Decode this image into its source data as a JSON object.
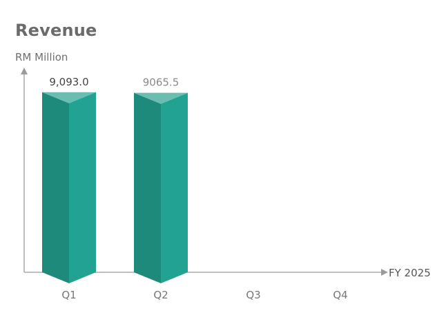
{
  "chart_data": {
    "type": "bar",
    "title": "Revenue",
    "ylabel": "RM Million",
    "xlabel": "FY 2025",
    "categories": [
      "Q1",
      "Q2",
      "Q3",
      "Q4"
    ],
    "values": [
      9093.0,
      9065.5,
      null,
      null
    ],
    "data_labels": [
      "9,093.0",
      "9065.5",
      "",
      ""
    ],
    "ylim": [
      0,
      10200
    ],
    "grid": false,
    "colors": {
      "bar_dark": "#1e8a7c",
      "bar_light": "#22a392",
      "bar_top": "#6bbdb2",
      "axis": "#9a9a9a",
      "label_q1": "#444444",
      "label_q2": "#8a8a8a"
    }
  }
}
